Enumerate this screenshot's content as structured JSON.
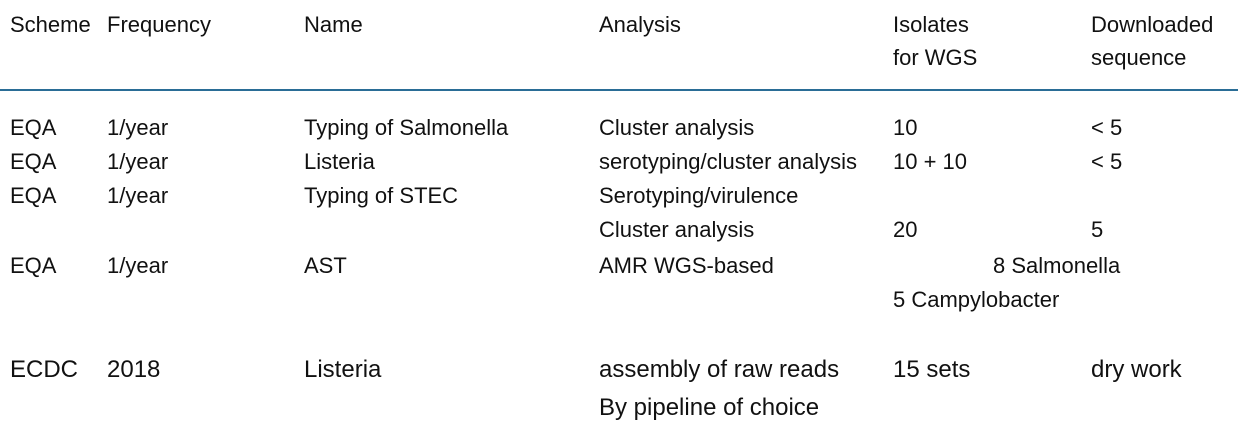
{
  "header": {
    "scheme": "Scheme",
    "frequency": "Frequency",
    "name": "Name",
    "analysis": "Analysis",
    "isolates_line1": "Isolates",
    "isolates_line2": "for WGS",
    "downloaded_line1": "Downloaded",
    "downloaded_line2": "sequence"
  },
  "rows": [
    {
      "scheme": "EQA",
      "frequency": "1/year",
      "name": "Typing of Salmonella",
      "analysis": "Cluster analysis",
      "isolates": "10",
      "downloaded": "< 5"
    },
    {
      "scheme": "EQA",
      "frequency": "1/year",
      "name": "Listeria",
      "analysis": "serotyping/cluster analysis",
      "isolates": "10 + 10",
      "downloaded": "< 5"
    },
    {
      "scheme": "EQA",
      "frequency": "1/year",
      "name": "Typing of STEC",
      "analysis": "Serotyping/virulence",
      "analysis_2": "Cluster analysis",
      "isolates": "20",
      "downloaded": "5"
    },
    {
      "scheme": "EQA",
      "frequency": "1/year",
      "name": "AST",
      "analysis": "AMR WGS-based",
      "isolates_line1": "8 Salmonella",
      "isolates_line2": "5 Campylobacter"
    },
    {
      "scheme": "ECDC",
      "frequency": "2018",
      "name": "Listeria",
      "analysis": "assembly of raw reads",
      "analysis_2": "By pipeline of choice",
      "isolates": "15 sets",
      "downloaded": "dry work"
    }
  ],
  "colors": {
    "rule": "#2a6d96",
    "text": "#111111"
  }
}
